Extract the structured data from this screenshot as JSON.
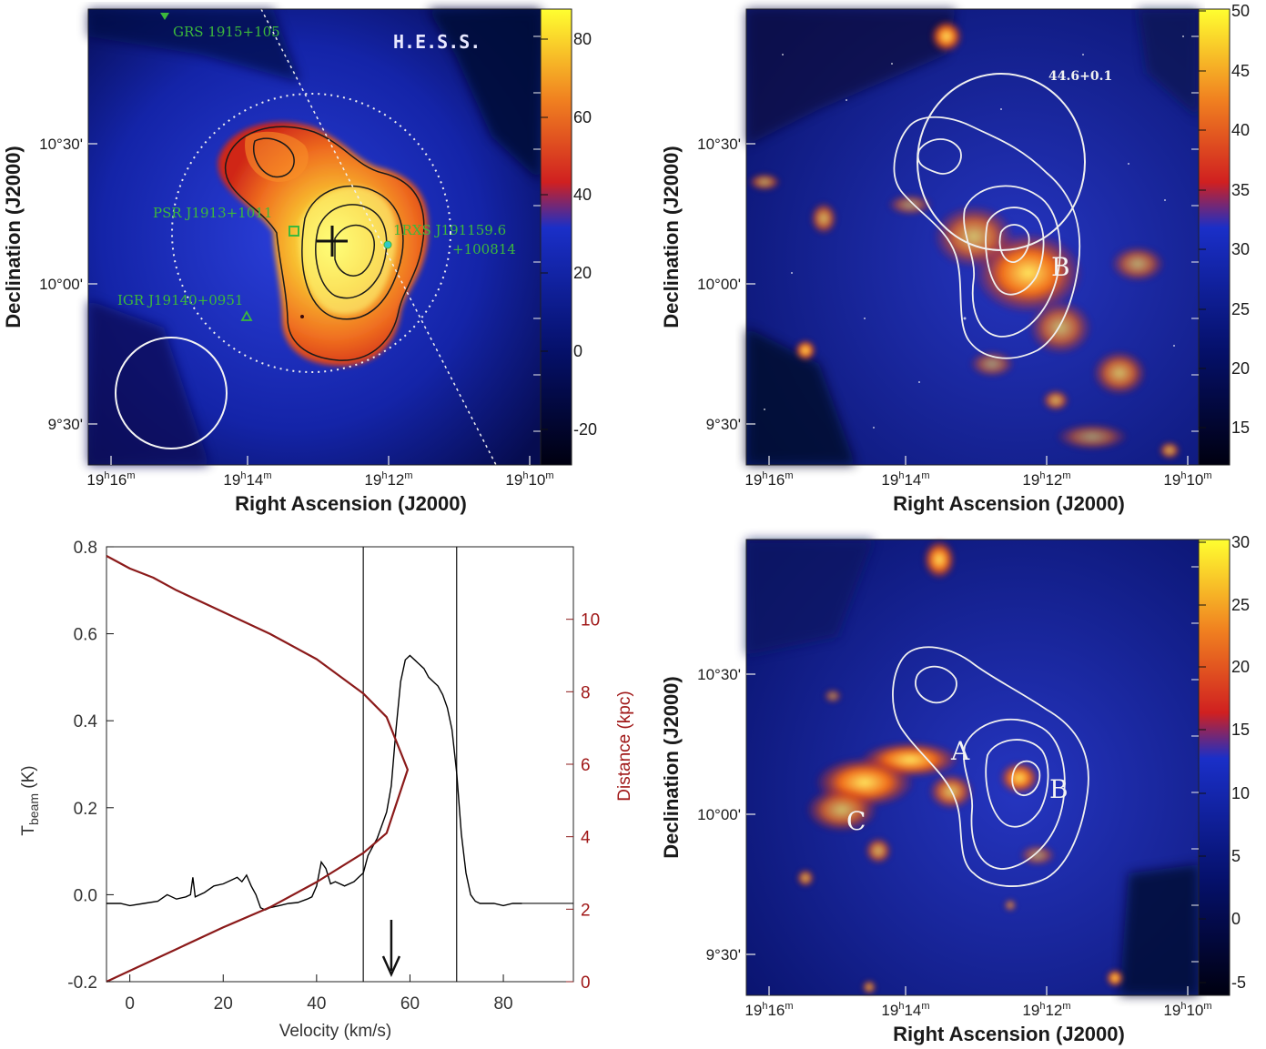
{
  "panels": {
    "a": {
      "xlabel": "Right Ascension (J2000)",
      "ylabel": "Declination (J2000)",
      "xticks": [
        "19h16m",
        "19h14m",
        "19h12m",
        "19h10m"
      ],
      "yticks": [
        "10°30'",
        "10°00'",
        "9°30'"
      ],
      "colorbar_ticks": [
        "80",
        "60",
        "40",
        "20",
        "0",
        "-20"
      ],
      "telescope": "H.E.S.S.",
      "sources": [
        {
          "name": "GRS 1915+105",
          "line2": ""
        },
        {
          "name": "PSR J1913+1011",
          "line2": ""
        },
        {
          "name": "1RXS J191159.6",
          "line2": "+100814"
        },
        {
          "name": "IGR J19140+0951",
          "line2": ""
        }
      ]
    },
    "b": {
      "xlabel": "Right Ascension (J2000)",
      "ylabel": "Declination (J2000)",
      "xticks": [
        "19h16m",
        "19h14m",
        "19h12m",
        "19h10m"
      ],
      "yticks": [
        "10°30'",
        "10°00'",
        "9°30'"
      ],
      "colorbar_ticks": [
        "50",
        "45",
        "40",
        "35",
        "30",
        "25",
        "20",
        "15"
      ],
      "snr_label": "44.6+0.1",
      "region": "B"
    },
    "c": {
      "chart_data": {
        "type": "line",
        "xlabel": "Velocity (km/s)",
        "ylabel": "T_beam (K)",
        "ylabel_main": "T",
        "ylabel_sub": "beam",
        "ylabel_unit": "(K)",
        "y2label": "Distance (kpc)",
        "xlim": [
          -5,
          95
        ],
        "ylim": [
          -0.2,
          0.8
        ],
        "y2lim": [
          0,
          12
        ],
        "xticks": [
          0,
          20,
          40,
          60,
          80
        ],
        "yticks": [
          "0.8",
          "0.6",
          "0.4",
          "0.2",
          "0.0",
          "-0.2"
        ],
        "y2ticks": [
          0,
          2,
          4,
          6,
          8,
          10
        ],
        "vlines": [
          50,
          70
        ],
        "arrow_x": 56,
        "series": [
          {
            "x": [
              -5,
              -2,
              0,
              3,
              6,
              8,
              10,
              12,
              13,
              13.5,
              14,
              16,
              18,
              20,
              22,
              23,
              24,
              25,
              26,
              27,
              28,
              29,
              30,
              32,
              34,
              36,
              38,
              39,
              40,
              41,
              42,
              43,
              44,
              46,
              48,
              49,
              50,
              51,
              52,
              53,
              54,
              55,
              56,
              57,
              58,
              59,
              60,
              61,
              62,
              63,
              64,
              65,
              66,
              67,
              68,
              69,
              70,
              71,
              72,
              73,
              74,
              75,
              76,
              78,
              80,
              82,
              84
            ],
            "y": [
              -0.02,
              -0.02,
              -0.025,
              -0.02,
              -0.015,
              0.0,
              -0.01,
              -0.005,
              0.0,
              0.04,
              -0.005,
              0.005,
              0.02,
              0.025,
              0.035,
              0.04,
              0.03,
              0.045,
              0.02,
              0.0,
              -0.03,
              -0.035,
              -0.03,
              -0.025,
              -0.02,
              -0.018,
              -0.01,
              -0.005,
              0.02,
              0.075,
              0.06,
              0.025,
              0.03,
              0.02,
              0.03,
              0.04,
              0.05,
              0.09,
              0.11,
              0.13,
              0.16,
              0.19,
              0.25,
              0.38,
              0.49,
              0.54,
              0.55,
              0.54,
              0.53,
              0.52,
              0.5,
              0.49,
              0.48,
              0.46,
              0.43,
              0.38,
              0.28,
              0.14,
              0.05,
              0.0,
              -0.015,
              -0.02,
              -0.02,
              -0.02,
              -0.025,
              -0.02,
              -0.02
            ]
          },
          {
            "axis": "distance",
            "v": [
              -5,
              0,
              10,
              20,
              30,
              40,
              50,
              55,
              59.5,
              55,
              50,
              40,
              30,
              20,
              10,
              5,
              0,
              -5
            ],
            "d": [
              0,
              0.3,
              0.9,
              1.5,
              2.05,
              2.75,
              3.55,
              4.1,
              5.85,
              7.3,
              7.95,
              8.9,
              9.6,
              10.2,
              10.8,
              11.15,
              11.4,
              11.75
            ]
          }
        ]
      }
    },
    "d": {
      "xlabel": "Right Ascension (J2000)",
      "ylabel": "Declination (J2000)",
      "xticks": [
        "19h16m",
        "19h14m",
        "19h12m",
        "19h10m"
      ],
      "yticks": [
        "10°30'",
        "10°00'",
        "9°30'"
      ],
      "colorbar_ticks": [
        "30",
        "25",
        "20",
        "15",
        "10",
        "5",
        "0",
        "-5"
      ],
      "regions": [
        "A",
        "B",
        "C"
      ]
    }
  },
  "colors": {
    "spectrum": "#000000",
    "distance_curve": "#8b1a1a",
    "source_labels": "#3cb83c"
  }
}
